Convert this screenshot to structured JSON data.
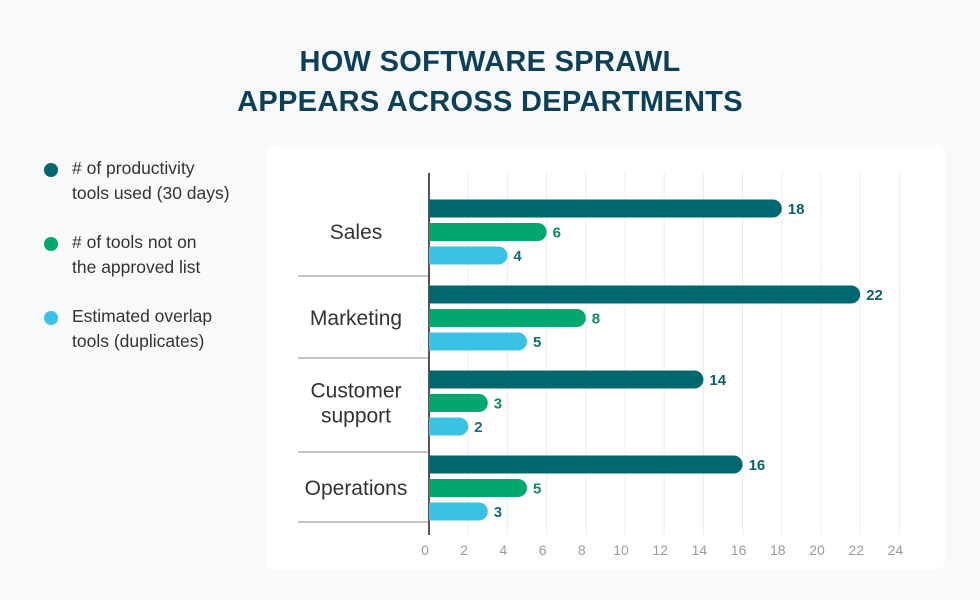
{
  "title_line1": "HOW SOFTWARE SPRAWL",
  "title_line2": "APPEARS ACROSS DEPARTMENTS",
  "chart_data": {
    "type": "bar",
    "orientation": "horizontal",
    "categories": [
      "Sales",
      "Marketing",
      "Customer support",
      "Operations"
    ],
    "category_lines": [
      [
        "Sales"
      ],
      [
        "Marketing"
      ],
      [
        "Customer",
        "support"
      ],
      [
        "Operations"
      ]
    ],
    "series": [
      {
        "name": "# of productivity tools used (30 days)",
        "legend_lines": [
          "# of productivity",
          "tools used (30 days)"
        ],
        "color": "#006670",
        "label_color": "#0b5f6b",
        "values": [
          18,
          22,
          14,
          16
        ]
      },
      {
        "name": "# of tools not on the approved list",
        "legend_lines": [
          "# of tools not on",
          "the approved list"
        ],
        "color": "#00a870",
        "label_color": "#0f8a66",
        "values": [
          6,
          8,
          3,
          5
        ]
      },
      {
        "name": "Estimated overlap tools (duplicates)",
        "legend_lines": [
          "Estimated overlap",
          "tools (duplicates)"
        ],
        "color": "#3bc0e6",
        "label_color": "#146a80",
        "values": [
          4,
          5,
          2,
          3
        ]
      }
    ],
    "xlim": [
      0,
      24
    ],
    "xticks": [
      0,
      2,
      4,
      6,
      8,
      10,
      12,
      14,
      16,
      18,
      20,
      22,
      24
    ],
    "grid": true,
    "legend_placement": "left",
    "data_labels": true
  }
}
